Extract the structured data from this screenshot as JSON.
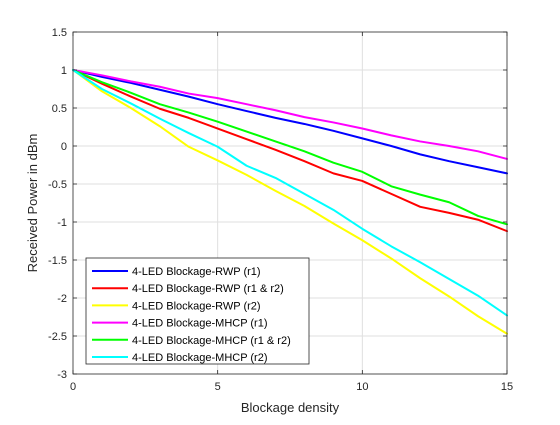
{
  "chart_data": {
    "type": "line",
    "title": "",
    "xlabel": "Blockage density",
    "ylabel": "Received Power in dBm",
    "xlim": [
      0,
      15
    ],
    "ylim": [
      -3,
      1.5
    ],
    "xticks": [
      0,
      5,
      10,
      15
    ],
    "yticks": [
      -3,
      -2.5,
      -2,
      -1.5,
      -1,
      -0.5,
      0,
      0.5,
      1,
      1.5
    ],
    "xtick_labels": [
      "0",
      "5",
      "10",
      "15"
    ],
    "ytick_labels": [
      "-3",
      "-2.5",
      "-2",
      "-1.5",
      "-1",
      "-0.5",
      "0",
      "0.5",
      "1",
      "1.5"
    ],
    "grid": true,
    "legend_position": "bottom-left",
    "x": [
      0,
      1,
      2,
      3,
      4,
      5,
      6,
      7,
      8,
      9,
      10,
      11,
      12,
      13,
      14,
      15
    ],
    "series": [
      {
        "name": "4-LED Blockage-RWP (r1)",
        "color": "#0000ff",
        "values": [
          1.0,
          0.91,
          0.83,
          0.74,
          0.65,
          0.55,
          0.46,
          0.37,
          0.29,
          0.2,
          0.1,
          0.0,
          -0.11,
          -0.2,
          -0.28,
          -0.36
        ]
      },
      {
        "name": "4-LED Blockage-RWP (r1 & r2)",
        "color": "#ff0000",
        "values": [
          1.0,
          0.82,
          0.65,
          0.49,
          0.37,
          0.23,
          0.09,
          -0.05,
          -0.2,
          -0.36,
          -0.46,
          -0.63,
          -0.8,
          -0.88,
          -0.97,
          -1.12
        ]
      },
      {
        "name": "4-LED Blockage-RWP (r2)",
        "color": "#ffff00",
        "values": [
          1.0,
          0.72,
          0.5,
          0.26,
          -0.01,
          -0.19,
          -0.38,
          -0.59,
          -0.79,
          -1.02,
          -1.24,
          -1.48,
          -1.74,
          -1.98,
          -2.24,
          -2.47
        ]
      },
      {
        "name": "4-LED Blockage-MHCP (r1)",
        "color": "#ff00ff",
        "values": [
          1.0,
          0.93,
          0.85,
          0.78,
          0.69,
          0.63,
          0.55,
          0.47,
          0.38,
          0.31,
          0.23,
          0.14,
          0.06,
          0.0,
          -0.07,
          -0.17
        ]
      },
      {
        "name": "4-LED Blockage-MHCP (r1 & r2)",
        "color": "#00ff00",
        "values": [
          1.0,
          0.84,
          0.7,
          0.55,
          0.44,
          0.32,
          0.19,
          0.06,
          -0.07,
          -0.22,
          -0.34,
          -0.53,
          -0.64,
          -0.74,
          -0.92,
          -1.03
        ]
      },
      {
        "name": "4-LED Blockage-MHCP (r2)",
        "color": "#00ffff",
        "values": [
          1.0,
          0.75,
          0.56,
          0.36,
          0.17,
          -0.01,
          -0.26,
          -0.42,
          -0.63,
          -0.84,
          -1.09,
          -1.32,
          -1.53,
          -1.75,
          -1.97,
          -2.23
        ]
      }
    ]
  }
}
